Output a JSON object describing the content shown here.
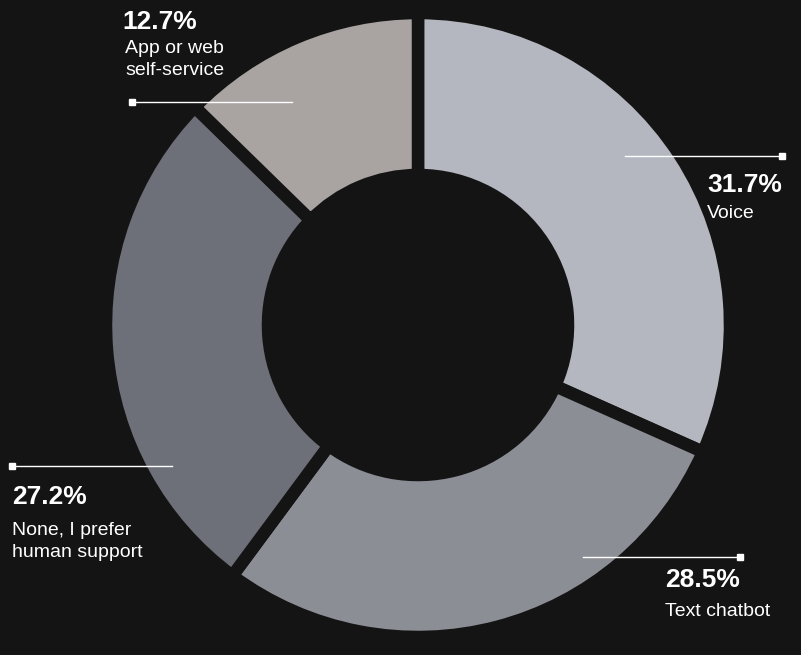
{
  "chart_data": {
    "type": "donut",
    "categories": [
      "Voice",
      "Text chatbot",
      "None, I prefer human support",
      "App or web self-service"
    ],
    "values": [
      31.7,
      28.5,
      27.2,
      12.7
    ],
    "value_labels": [
      "31.7%",
      "28.5%",
      "27.2%",
      "12.7%"
    ],
    "colors": [
      "#b4b7bf",
      "#8c8e96",
      "#6e7079",
      "#a9a4a2"
    ],
    "data_labels": true
  }
}
